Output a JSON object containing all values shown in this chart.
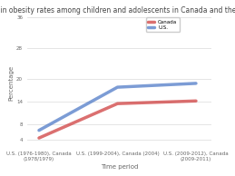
{
  "title": "Trends in obesity rates among children and adolescents in Canada and the U.S., %",
  "xlabel": "Time period",
  "ylabel": "Percentage",
  "canada_values": [
    4.5,
    13.5,
    14.2
  ],
  "us_values": [
    6.5,
    17.8,
    18.8
  ],
  "x_positions": [
    0,
    1,
    2
  ],
  "xtick_labels": [
    "U.S. (1976-1980), Canada (1978/1979)",
    "U.S. (1999-2004), Canada (2004)",
    "U.S. (2009-2012), Canada (2009-2011)"
  ],
  "canada_color": "#cc3333",
  "us_color": "#4472c4",
  "ylim": [
    2,
    32
  ],
  "yticks": [
    4,
    8,
    14,
    20,
    28,
    36
  ],
  "legend_labels": [
    "Canada",
    "U.S."
  ],
  "bg_color": "#ffffff",
  "title_fontsize": 5.5,
  "label_fontsize": 5.0,
  "tick_fontsize": 4.0,
  "line_width": 2.5
}
